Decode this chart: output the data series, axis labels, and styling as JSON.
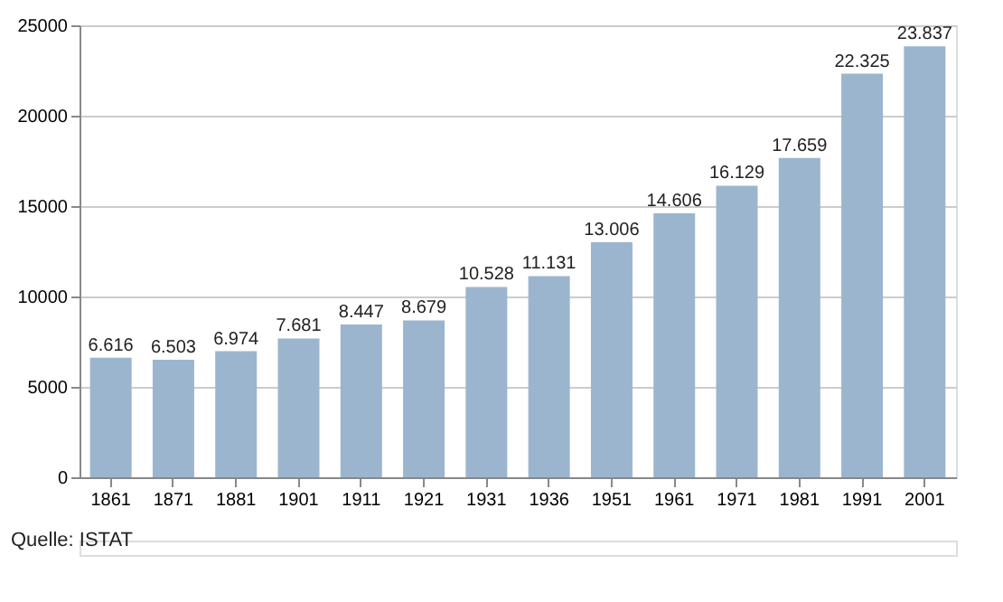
{
  "chart_data": {
    "type": "bar",
    "categories": [
      "1861",
      "1871",
      "1881",
      "1901",
      "1911",
      "1921",
      "1931",
      "1936",
      "1951",
      "1961",
      "1971",
      "1981",
      "1991",
      "2001"
    ],
    "values": [
      6616,
      6503,
      6974,
      7681,
      8447,
      8679,
      10528,
      11131,
      13006,
      14606,
      16129,
      17659,
      22325,
      23837
    ],
    "value_labels": [
      "6.616",
      "6.503",
      "6.974",
      "7.681",
      "8.447",
      "8.679",
      "10.528",
      "11.131",
      "13.006",
      "14.606",
      "16.129",
      "17.659",
      "22.325",
      "23.837"
    ],
    "color": "#9bb5cf",
    "ylim": [
      0,
      25000
    ],
    "yticks": [
      0,
      5000,
      10000,
      15000,
      20000,
      25000
    ],
    "grid": "y",
    "annotations": [
      "Quelle: ISTAT"
    ]
  }
}
